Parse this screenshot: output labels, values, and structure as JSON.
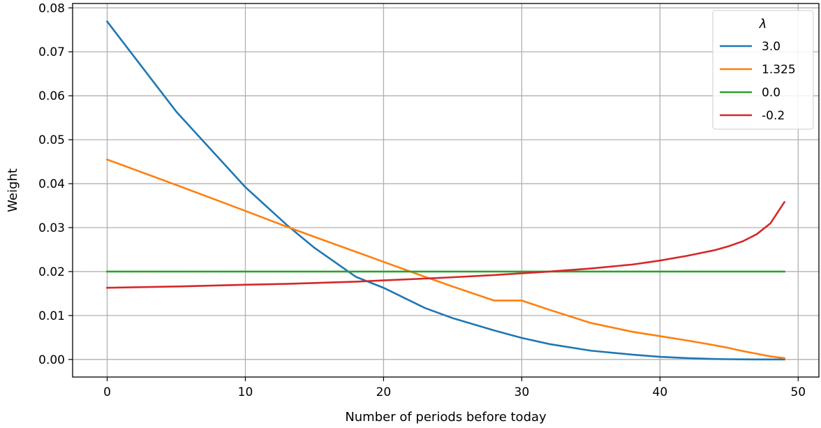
{
  "chart_data": {
    "type": "line",
    "title": "",
    "xlabel": "Number of periods before today",
    "ylabel": "Weight",
    "xlim": [
      -2.5,
      51.5
    ],
    "ylim": [
      -0.004,
      0.081
    ],
    "x_ticks": [
      0,
      10,
      20,
      30,
      40,
      50
    ],
    "x_tick_labels": [
      "0",
      "10",
      "20",
      "30",
      "40",
      "50"
    ],
    "y_ticks": [
      0.0,
      0.01,
      0.02,
      0.03,
      0.04,
      0.05,
      0.06,
      0.07,
      0.08
    ],
    "y_tick_labels": [
      "0.00",
      "0.01",
      "0.02",
      "0.03",
      "0.04",
      "0.05",
      "0.06",
      "0.07",
      "0.08"
    ],
    "grid": true,
    "legend": {
      "title": "λ",
      "position": "top-right"
    },
    "x": [
      0,
      5,
      10,
      13,
      15,
      18,
      20,
      23,
      25,
      28,
      30,
      32,
      35,
      38,
      40,
      42,
      44,
      45,
      46,
      47,
      48,
      49
    ],
    "series": [
      {
        "name": "3.0",
        "color": "#1f77b4",
        "values": [
          0.0769,
          0.0564,
          0.0392,
          0.0306,
          0.0254,
          0.0188,
          0.0163,
          0.0117,
          0.0094,
          0.0066,
          0.0049,
          0.0035,
          0.002,
          0.0011,
          0.0006,
          0.0003,
          0.0001,
          5e-05,
          2e-05,
          0.0,
          0.0,
          0.0
        ]
      },
      {
        "name": "1.325",
        "color": "#ff7f0e",
        "values": [
          0.0455,
          0.0397,
          0.0338,
          0.0302,
          0.0279,
          0.0245,
          0.0222,
          0.0188,
          0.0166,
          0.0134,
          0.0134,
          0.0113,
          0.0083,
          0.0063,
          0.0053,
          0.0043,
          0.0032,
          0.0026,
          0.0019,
          0.0013,
          0.0007,
          0.0003
        ]
      },
      {
        "name": "0.0",
        "color": "#2ca02c",
        "values": [
          0.02,
          0.02,
          0.02,
          0.02,
          0.02,
          0.02,
          0.02,
          0.02,
          0.02,
          0.02,
          0.02,
          0.02,
          0.02,
          0.02,
          0.02,
          0.02,
          0.02,
          0.02,
          0.02,
          0.02,
          0.02,
          0.02
        ]
      },
      {
        "name": "-0.2",
        "color": "#d62728",
        "values": [
          0.0163,
          0.0166,
          0.017,
          0.0172,
          0.0174,
          0.0177,
          0.018,
          0.0184,
          0.0187,
          0.0192,
          0.0196,
          0.02,
          0.0207,
          0.0216,
          0.0225,
          0.0236,
          0.0249,
          0.0258,
          0.0269,
          0.0285,
          0.031,
          0.0358
        ]
      }
    ]
  }
}
